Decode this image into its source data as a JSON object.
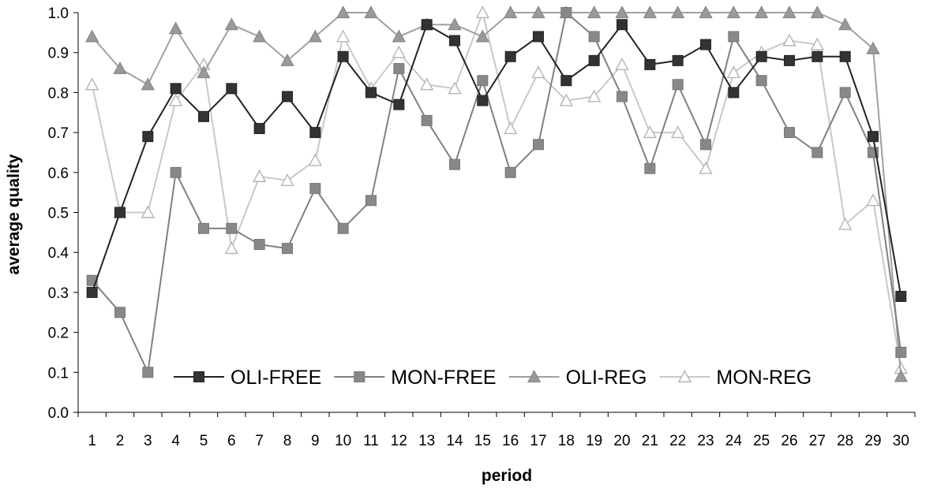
{
  "chart_data": {
    "type": "line",
    "title": "",
    "xlabel": "period",
    "ylabel": "average quality",
    "ylim": [
      0,
      1
    ],
    "y_ticks": [
      "0.0",
      "0.1",
      "0.2",
      "0.3",
      "0.4",
      "0.5",
      "0.6",
      "0.7",
      "0.8",
      "0.9",
      "1.0"
    ],
    "categories": [
      "1",
      "2",
      "3",
      "4",
      "5",
      "6",
      "7",
      "8",
      "9",
      "10",
      "11",
      "12",
      "13",
      "14",
      "15",
      "16",
      "17",
      "18",
      "19",
      "20",
      "21",
      "22",
      "23",
      "24",
      "25",
      "26",
      "27",
      "28",
      "29",
      "30"
    ],
    "grid": false,
    "legend_position": "bottom-inside",
    "series": [
      {
        "name": "OLI-FREE",
        "marker": "filled-square",
        "line_color": "#222222",
        "marker_fill": "#333333",
        "marker_stroke": "#222222",
        "values": [
          0.3,
          0.5,
          0.69,
          0.81,
          0.74,
          0.81,
          0.71,
          0.79,
          0.7,
          0.89,
          0.8,
          0.77,
          0.97,
          0.93,
          0.78,
          0.89,
          0.94,
          0.83,
          0.88,
          0.97,
          0.87,
          0.88,
          0.92,
          0.8,
          0.89,
          0.88,
          0.89,
          0.89,
          0.69,
          0.29
        ]
      },
      {
        "name": "MON-FREE",
        "marker": "filled-square",
        "line_color": "#808080",
        "marker_fill": "#888888",
        "marker_stroke": "#777777",
        "values": [
          0.33,
          0.25,
          0.1,
          0.6,
          0.46,
          0.46,
          0.42,
          0.41,
          0.56,
          0.46,
          0.53,
          0.86,
          0.73,
          0.62,
          0.83,
          0.6,
          0.67,
          1.0,
          0.94,
          0.79,
          0.61,
          0.82,
          0.67,
          0.94,
          0.83,
          0.7,
          0.65,
          0.8,
          0.65,
          0.15
        ]
      },
      {
        "name": "OLI-REG",
        "marker": "filled-triangle",
        "line_color": "#a0a0a0",
        "marker_fill": "#9a9a9a",
        "marker_stroke": "#8a8a8a",
        "values": [
          0.94,
          0.86,
          0.82,
          0.96,
          0.85,
          0.97,
          0.94,
          0.88,
          0.94,
          1.0,
          1.0,
          0.94,
          0.97,
          0.97,
          0.94,
          1.0,
          1.0,
          1.0,
          1.0,
          1.0,
          1.0,
          1.0,
          1.0,
          1.0,
          1.0,
          1.0,
          1.0,
          0.97,
          0.91,
          0.09
        ]
      },
      {
        "name": "MON-REG",
        "marker": "hollow-triangle",
        "line_color": "#c8c8c8",
        "marker_fill": "#ffffff",
        "marker_stroke": "#b5b5b5",
        "values": [
          0.82,
          0.5,
          0.5,
          0.78,
          0.87,
          0.41,
          0.59,
          0.58,
          0.63,
          0.94,
          0.81,
          0.9,
          0.82,
          0.81,
          1.0,
          0.71,
          0.85,
          0.78,
          0.79,
          0.87,
          0.7,
          0.7,
          0.61,
          0.85,
          0.9,
          0.93,
          0.92,
          0.47,
          0.53,
          0.11
        ]
      }
    ]
  }
}
